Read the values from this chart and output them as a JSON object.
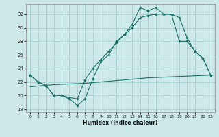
{
  "xlabel": "Humidex (Indice chaleur)",
  "bg_color": "#cce8e8",
  "grid_color": "#aad0d0",
  "line_color": "#1a7068",
  "xlim": [
    -0.5,
    23.5
  ],
  "ylim": [
    17.5,
    33.5
  ],
  "xticks": [
    0,
    1,
    2,
    3,
    4,
    5,
    6,
    7,
    8,
    9,
    10,
    11,
    12,
    13,
    14,
    15,
    16,
    17,
    18,
    19,
    20,
    21,
    22,
    23
  ],
  "yticks": [
    18,
    20,
    22,
    24,
    26,
    28,
    30,
    32
  ],
  "line1_x": [
    0,
    1,
    2,
    3,
    4,
    5,
    6,
    7,
    8,
    9,
    10,
    11,
    12,
    13,
    14,
    15,
    16,
    17,
    18,
    19,
    20,
    21,
    22,
    23
  ],
  "line1_y": [
    23.0,
    22.0,
    21.5,
    20.0,
    20.0,
    19.5,
    18.5,
    19.5,
    22.5,
    25.0,
    26.0,
    28.0,
    29.0,
    30.5,
    33.0,
    32.5,
    33.0,
    32.0,
    32.0,
    31.5,
    28.5,
    26.5,
    25.5,
    23.0
  ],
  "line2_x": [
    0,
    1,
    2,
    3,
    4,
    5,
    6,
    7,
    8,
    9,
    10,
    11,
    12,
    13,
    14,
    15,
    16,
    17,
    18,
    19,
    20,
    21,
    22,
    23
  ],
  "line2_y": [
    23.0,
    22.0,
    21.5,
    20.0,
    20.0,
    19.7,
    19.5,
    22.3,
    24.0,
    25.3,
    26.5,
    27.8,
    29.0,
    30.0,
    31.5,
    31.8,
    32.0,
    32.0,
    32.0,
    28.0,
    28.0,
    26.5,
    25.5,
    23.0
  ],
  "line3_x": [
    0,
    1,
    2,
    3,
    4,
    5,
    6,
    7,
    8,
    9,
    10,
    11,
    12,
    13,
    14,
    15,
    16,
    17,
    18,
    19,
    20,
    21,
    22,
    23
  ],
  "line3_y": [
    21.3,
    21.4,
    21.5,
    21.6,
    21.65,
    21.7,
    21.75,
    21.8,
    21.9,
    22.0,
    22.1,
    22.2,
    22.3,
    22.4,
    22.5,
    22.6,
    22.65,
    22.7,
    22.75,
    22.8,
    22.85,
    22.9,
    22.95,
    23.0
  ]
}
